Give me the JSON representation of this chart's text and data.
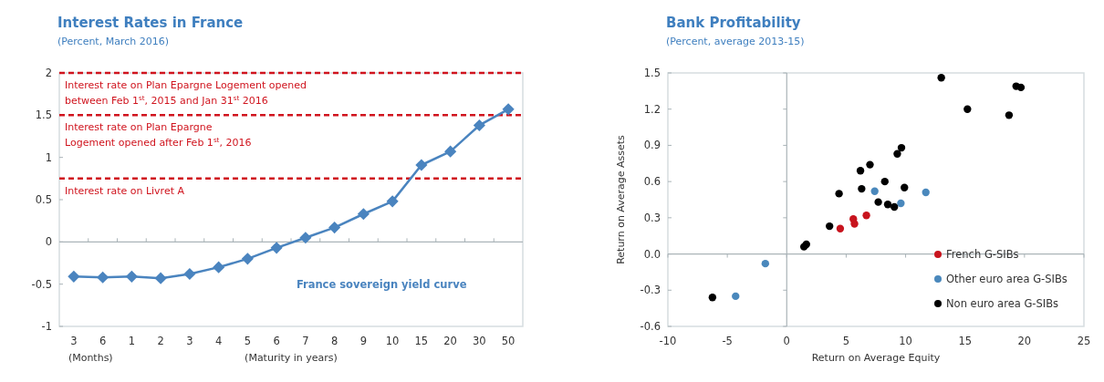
{
  "chart_data": [
    {
      "type": "line",
      "title": "Interest Rates in France",
      "subtitle": "(Percent, March 2016)",
      "xlabel": "(Maturity in years)",
      "annotations": [
        "(Months)"
      ],
      "categories": [
        "3",
        "6",
        "1",
        "2",
        "3",
        "4",
        "5",
        "6",
        "7",
        "8",
        "9",
        "10",
        "15",
        "20",
        "30",
        "50"
      ],
      "series": [
        {
          "name": "France sovereign yield curve",
          "color": "#4a84bf",
          "values": [
            -0.41,
            -0.42,
            -0.41,
            -0.43,
            -0.38,
            -0.3,
            -0.2,
            -0.07,
            0.05,
            0.17,
            0.33,
            0.48,
            0.91,
            1.07,
            1.38,
            1.57
          ]
        }
      ],
      "ylim": [
        -1,
        2
      ],
      "yticks": [
        -1,
        -0.5,
        0,
        0.5,
        1,
        1.5,
        2
      ],
      "grid": false,
      "legend": false,
      "marker": "diamond",
      "line_style": "solid",
      "ref_lines": [
        {
          "axis": "y",
          "value": 2,
          "label": "Interest rate on Plan Epargne Logement opened\nbetween Feb 1$^{st}$, 2015 and Jan 31$^{st}$ 2016",
          "color": "#d0141e",
          "line_style": "dashed"
        },
        {
          "axis": "y",
          "value": 1.5,
          "label": "Interest rate on Plan Epargne\nLogement opened after Feb 1$^{st}$, 2016",
          "color": "#d0141e",
          "line_style": "dashed"
        },
        {
          "axis": "y",
          "value": 0.75,
          "label": "Interest rate on Livret A",
          "color": "#d0141e",
          "line_style": "dashed"
        }
      ]
    },
    {
      "type": "scatter",
      "title": "Bank Profitability",
      "subtitle": "(Percent, average 2013-15)",
      "xlabel": "Return on Average Equity",
      "ylabel": "Return on Average Assets",
      "xlim": [
        -10,
        25
      ],
      "xticks": [
        -10,
        -5,
        0,
        5,
        10,
        15,
        20,
        25
      ],
      "ylim": [
        -0.6,
        1.5
      ],
      "yticks": [
        -0.6,
        -0.3,
        {
          "value": 0,
          "label": "0.0"
        },
        0.3,
        0.6,
        0.9,
        1.2,
        1.5
      ],
      "grid": false,
      "legend": "bottom right",
      "marker": "circle",
      "ref_lines": [
        {
          "axis": "x",
          "value": 0,
          "color": "#aab4b8",
          "line_style": "solid"
        },
        {
          "axis": "y",
          "value": 0,
          "color": "#aab4b8",
          "line_style": "solid"
        }
      ],
      "series": [
        {
          "name": "French G-SIBs",
          "color": "#c8141e",
          "x": [
            4.5,
            5.6,
            5.7,
            6.7
          ],
          "values": [
            0.21,
            0.29,
            0.25,
            0.32
          ]
        },
        {
          "name": "Other euro area G-SIBs",
          "color": "#4a88bc",
          "x": [
            -1.8,
            -4.3,
            7.4,
            9.6,
            11.7
          ],
          "values": [
            -0.08,
            -0.35,
            0.52,
            0.42,
            0.51
          ]
        },
        {
          "name": "Non euro area G-SIBs",
          "color": "#000000",
          "x": [
            -6.25,
            1.45,
            1.65,
            3.6,
            4.4,
            6.2,
            7.0,
            6.3,
            8.25,
            9.9,
            7.7,
            8.5,
            9.05,
            9.3,
            9.65,
            13.0,
            15.2,
            18.7,
            19.3,
            19.7
          ],
          "values": [
            -0.36,
            0.06,
            0.08,
            0.23,
            0.5,
            0.69,
            0.74,
            0.54,
            0.6,
            0.55,
            0.43,
            0.41,
            0.39,
            0.83,
            0.88,
            1.46,
            1.2,
            1.15,
            1.39,
            1.38
          ]
        }
      ]
    }
  ]
}
